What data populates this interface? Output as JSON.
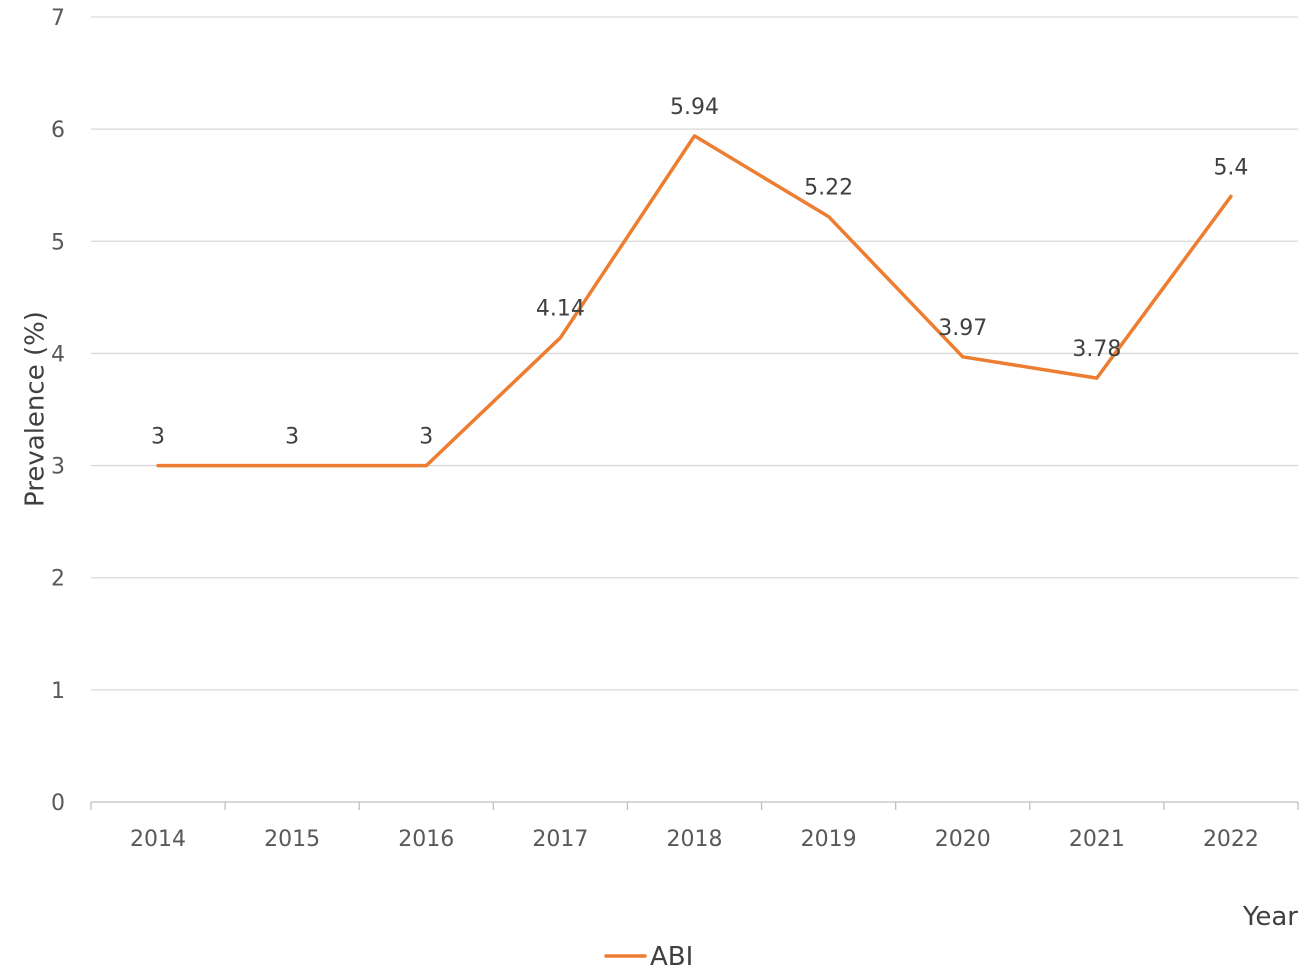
{
  "chart_data": {
    "type": "line",
    "categories": [
      "2014",
      "2015",
      "2016",
      "2017",
      "2018",
      "2019",
      "2020",
      "2021",
      "2022"
    ],
    "series": [
      {
        "name": "ABI",
        "values": [
          3,
          3,
          3,
          4.14,
          5.94,
          5.22,
          3.97,
          3.78,
          5.4
        ],
        "labels": [
          "3",
          "3",
          "3",
          "4.14",
          "5.94",
          "5.22",
          "3.97",
          "3.78",
          "5.4"
        ],
        "color": "#ED7D31"
      }
    ],
    "xlabel": "Year",
    "ylabel": "Prevalence (%)",
    "ylim": [
      0,
      7
    ],
    "yticks": [
      "0",
      "1",
      "2",
      "3",
      "4",
      "5",
      "6",
      "7"
    ],
    "grid": "horizontal",
    "legend": "bottom"
  }
}
